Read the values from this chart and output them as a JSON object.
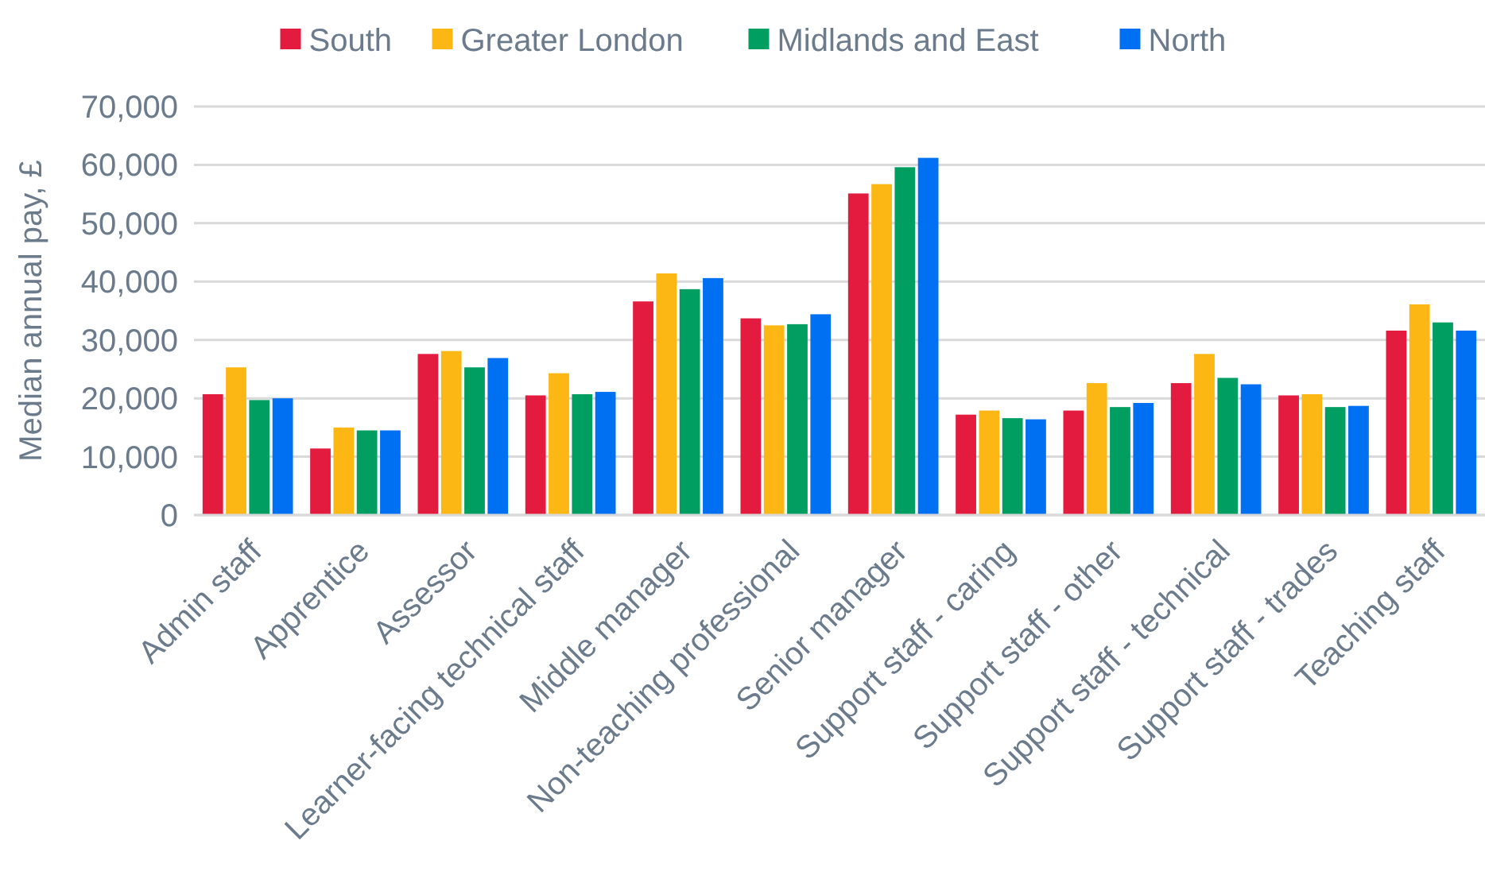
{
  "chart_data": {
    "type": "bar",
    "ylabel": "Median annual pay, £",
    "categories": [
      "Admin staff",
      "Apprentice",
      "Assessor",
      "Learner-facing technical staff",
      "Middle manager",
      "Non-teaching professional",
      "Senior manager",
      "Support staff - caring",
      "Support staff - other",
      "Support staff - technical",
      "Support staff - trades",
      "Teaching staff"
    ],
    "series": [
      {
        "name": "South",
        "color": "#e31c3f",
        "values": [
          20700,
          11400,
          27600,
          20500,
          36600,
          33700,
          55100,
          17200,
          17900,
          22600,
          20500,
          31600
        ]
      },
      {
        "name": "Greater London",
        "color": "#fdb714",
        "values": [
          25300,
          15000,
          28100,
          24300,
          41400,
          32500,
          56700,
          17900,
          22600,
          27600,
          20700,
          36100
        ]
      },
      {
        "name": "Midlands and East",
        "color": "#009e61",
        "values": [
          19700,
          14500,
          25300,
          20700,
          38700,
          32700,
          59600,
          16600,
          18500,
          23500,
          18500,
          33000
        ]
      },
      {
        "name": "North",
        "color": "#0070f3",
        "values": [
          20000,
          14500,
          26900,
          21100,
          40600,
          34400,
          61200,
          16400,
          19200,
          22400,
          18700,
          31600
        ]
      }
    ],
    "ylim": [
      0,
      70000
    ],
    "yticks": [
      {
        "value": 0,
        "label": "0"
      },
      {
        "value": 10000,
        "label": "10,000"
      },
      {
        "value": 20000,
        "label": "20,000"
      },
      {
        "value": 30000,
        "label": "30,000"
      },
      {
        "value": 40000,
        "label": "40,000"
      },
      {
        "value": 50000,
        "label": "50,000"
      },
      {
        "value": 60000,
        "label": "60,000"
      },
      {
        "value": 70000,
        "label": "70,000"
      }
    ],
    "grid": "y",
    "legend": "top"
  }
}
